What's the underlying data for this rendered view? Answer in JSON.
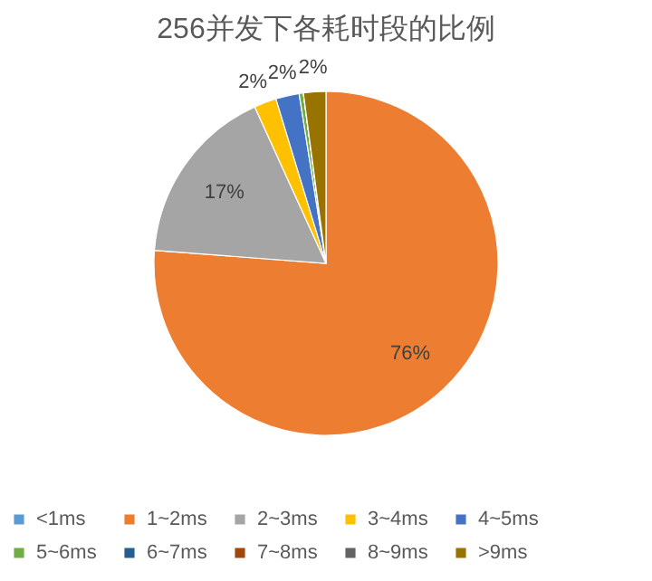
{
  "chart_data": {
    "type": "pie",
    "title": "256并发下各耗时段的比例",
    "categories": [
      "<1ms",
      "1~2ms",
      "2~3ms",
      "3~4ms",
      "4~5ms",
      "5~6ms",
      "6~7ms",
      "7~8ms",
      "8~9ms",
      ">9ms"
    ],
    "values": [
      0,
      76.2,
      17,
      2.1,
      2.2,
      0.4,
      0,
      0,
      0,
      2.1
    ],
    "value_labels": [
      null,
      "76%",
      "17%",
      "2%",
      "2%",
      null,
      null,
      null,
      null,
      "2%"
    ],
    "colors": [
      "#5b9bd5",
      "#ed7d31",
      "#a5a5a5",
      "#ffc000",
      "#4472c4",
      "#70ad47",
      "#255e91",
      "#9e480e",
      "#636363",
      "#997300"
    ],
    "legend": "bottom"
  }
}
